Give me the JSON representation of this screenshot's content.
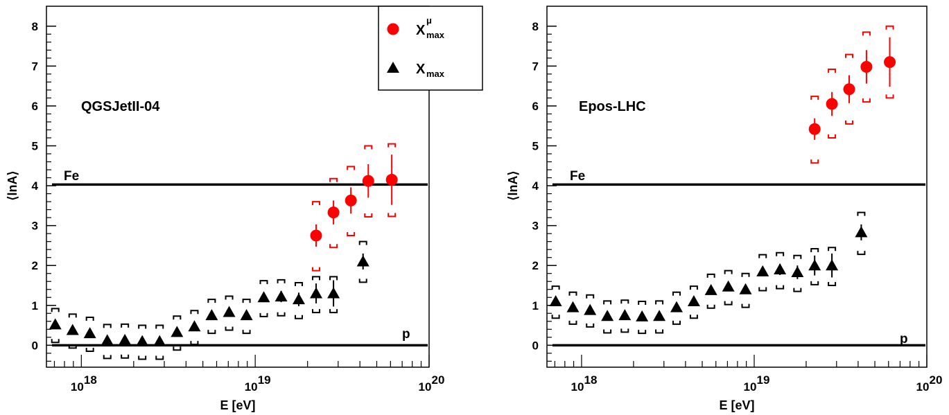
{
  "chart_data": [
    {
      "type": "scatter",
      "model_label": "QGSJetII-04",
      "xlabel": "E [eV]",
      "ylabel": "⟨lnA⟩",
      "xscale": "log",
      "xlim": [
        6.3e+17,
        1e+20
      ],
      "ylim": [
        -0.55,
        8.5
      ],
      "x_tick_labels": [
        {
          "base": "10",
          "exp": "18",
          "value": 1e+18
        },
        {
          "base": "10",
          "exp": "19",
          "value": 1e+19
        },
        {
          "base": "10",
          "exp": "20",
          "value": 1e+20
        }
      ],
      "y_ticks": [
        0,
        1,
        2,
        3,
        4,
        5,
        6,
        7,
        8
      ],
      "y_tick_labels": [
        "0",
        "1",
        "2",
        "3",
        "4",
        "5",
        "6",
        "7",
        "8"
      ],
      "reference_lines": [
        {
          "label": "Fe",
          "y": 4.03
        },
        {
          "label": "p",
          "y": 0.0
        }
      ],
      "legend": {
        "placement": "top-right",
        "entries": [
          {
            "name_base": "X",
            "name_sub": "max",
            "name_sup": "μ",
            "marker": "circle",
            "color": "#ff0000"
          },
          {
            "name_base": "X",
            "name_sub": "max",
            "name_sup": "",
            "marker": "triangle",
            "color": "#000000"
          }
        ]
      },
      "series": [
        {
          "marker": "circle",
          "color": "#ff0000",
          "points": [
            {
              "x": 2.24e+19,
              "y": 2.75,
              "stat": [
                0.28,
                0.28
              ],
              "sys": [
                0.88,
                0.85
              ]
            },
            {
              "x": 2.82e+19,
              "y": 3.33,
              "stat": [
                0.3,
                0.3
              ],
              "sys": [
                0.88,
                0.85
              ]
            },
            {
              "x": 3.55e+19,
              "y": 3.63,
              "stat": [
                0.33,
                0.33
              ],
              "sys": [
                0.88,
                0.85
              ]
            },
            {
              "x": 4.47e+19,
              "y": 4.12,
              "stat": [
                0.42,
                0.42
              ],
              "sys": [
                0.9,
                0.88
              ]
            },
            {
              "x": 6.1e+19,
              "y": 4.15,
              "stat": [
                0.63,
                0.63
              ],
              "sys": [
                0.92,
                0.9
              ]
            }
          ]
        },
        {
          "marker": "triangle",
          "color": "#000000",
          "points": [
            {
              "x": 7.08e+17,
              "y": 0.52,
              "stat": [
                0.07,
                0.07
              ],
              "sys": [
                0.45,
                0.4
              ]
            },
            {
              "x": 8.91e+17,
              "y": 0.38,
              "stat": [
                0.06,
                0.06
              ],
              "sys": [
                0.45,
                0.4
              ]
            },
            {
              "x": 1.12e+18,
              "y": 0.3,
              "stat": [
                0.06,
                0.06
              ],
              "sys": [
                0.45,
                0.4
              ]
            },
            {
              "x": 1.41e+18,
              "y": 0.12,
              "stat": [
                0.05,
                0.05
              ],
              "sys": [
                0.45,
                0.4
              ]
            },
            {
              "x": 1.78e+18,
              "y": 0.13,
              "stat": [
                0.05,
                0.05
              ],
              "sys": [
                0.45,
                0.4
              ]
            },
            {
              "x": 2.24e+18,
              "y": 0.1,
              "stat": [
                0.05,
                0.05
              ],
              "sys": [
                0.45,
                0.4
              ]
            },
            {
              "x": 2.82e+18,
              "y": 0.1,
              "stat": [
                0.05,
                0.05
              ],
              "sys": [
                0.45,
                0.4
              ]
            },
            {
              "x": 3.55e+18,
              "y": 0.33,
              "stat": [
                0.06,
                0.06
              ],
              "sys": [
                0.45,
                0.4
              ]
            },
            {
              "x": 4.47e+18,
              "y": 0.47,
              "stat": [
                0.07,
                0.07
              ],
              "sys": [
                0.45,
                0.4
              ]
            },
            {
              "x": 5.62e+18,
              "y": 0.75,
              "stat": [
                0.08,
                0.08
              ],
              "sys": [
                0.45,
                0.4
              ]
            },
            {
              "x": 7.08e+18,
              "y": 0.83,
              "stat": [
                0.09,
                0.09
              ],
              "sys": [
                0.45,
                0.4
              ]
            },
            {
              "x": 8.91e+18,
              "y": 0.75,
              "stat": [
                0.1,
                0.1
              ],
              "sys": [
                0.45,
                0.4
              ]
            },
            {
              "x": 1.12e+19,
              "y": 1.2,
              "stat": [
                0.12,
                0.12
              ],
              "sys": [
                0.48,
                0.42
              ]
            },
            {
              "x": 1.41e+19,
              "y": 1.22,
              "stat": [
                0.14,
                0.14
              ],
              "sys": [
                0.48,
                0.42
              ]
            },
            {
              "x": 1.78e+19,
              "y": 1.15,
              "stat": [
                0.17,
                0.17
              ],
              "sys": [
                0.48,
                0.42
              ]
            },
            {
              "x": 2.24e+19,
              "y": 1.3,
              "stat": [
                0.25,
                0.25
              ],
              "sys": [
                0.48,
                0.42
              ]
            },
            {
              "x": 2.82e+19,
              "y": 1.3,
              "stat": [
                0.33,
                0.33
              ],
              "sys": [
                0.48,
                0.42
              ]
            },
            {
              "x": 4.17e+19,
              "y": 2.1,
              "stat": [
                0.2,
                0.2
              ],
              "sys": [
                0.52,
                0.5
              ]
            }
          ]
        }
      ]
    },
    {
      "type": "scatter",
      "model_label": "Epos-LHC",
      "xlabel": "E [eV]",
      "ylabel": "⟨lnA⟩",
      "xscale": "log",
      "xlim": [
        6.3e+17,
        1e+20
      ],
      "ylim": [
        -0.55,
        8.5
      ],
      "x_tick_labels": [
        {
          "base": "10",
          "exp": "18",
          "value": 1e+18
        },
        {
          "base": "10",
          "exp": "19",
          "value": 1e+19
        },
        {
          "base": "10",
          "exp": "20",
          "value": 1e+20
        }
      ],
      "y_ticks": [
        0,
        1,
        2,
        3,
        4,
        5,
        6,
        7,
        8
      ],
      "y_tick_labels": [
        "0",
        "1",
        "2",
        "3",
        "4",
        "5",
        "6",
        "7",
        "8"
      ],
      "reference_lines": [
        {
          "label": "Fe",
          "y": 4.03
        },
        {
          "label": "p",
          "y": 0.0
        }
      ],
      "series": [
        {
          "marker": "circle",
          "color": "#ff0000",
          "points": [
            {
              "x": 2.24e+19,
              "y": 5.42,
              "stat": [
                0.27,
                0.27
              ],
              "sys": [
                0.85,
                0.82
              ]
            },
            {
              "x": 2.82e+19,
              "y": 6.05,
              "stat": [
                0.3,
                0.3
              ],
              "sys": [
                0.85,
                0.87
              ]
            },
            {
              "x": 3.55e+19,
              "y": 6.42,
              "stat": [
                0.35,
                0.35
              ],
              "sys": [
                0.87,
                0.87
              ]
            },
            {
              "x": 4.47e+19,
              "y": 6.98,
              "stat": [
                0.42,
                0.42
              ],
              "sys": [
                0.88,
                0.87
              ]
            },
            {
              "x": 6.1e+19,
              "y": 7.1,
              "stat": [
                0.62,
                0.62
              ],
              "sys": [
                0.9,
                0.9
              ]
            }
          ]
        },
        {
          "marker": "triangle",
          "color": "#000000",
          "points": [
            {
              "x": 7.08e+17,
              "y": 1.1,
              "stat": [
                0.08,
                0.08
              ],
              "sys": [
                0.42,
                0.38
              ]
            },
            {
              "x": 8.91e+17,
              "y": 0.95,
              "stat": [
                0.07,
                0.07
              ],
              "sys": [
                0.42,
                0.38
              ]
            },
            {
              "x": 1.12e+18,
              "y": 0.88,
              "stat": [
                0.07,
                0.07
              ],
              "sys": [
                0.42,
                0.38
              ]
            },
            {
              "x": 1.41e+18,
              "y": 0.73,
              "stat": [
                0.06,
                0.06
              ],
              "sys": [
                0.42,
                0.38
              ]
            },
            {
              "x": 1.78e+18,
              "y": 0.75,
              "stat": [
                0.06,
                0.06
              ],
              "sys": [
                0.42,
                0.38
              ]
            },
            {
              "x": 2.24e+18,
              "y": 0.72,
              "stat": [
                0.06,
                0.06
              ],
              "sys": [
                0.42,
                0.38
              ]
            },
            {
              "x": 2.82e+18,
              "y": 0.73,
              "stat": [
                0.06,
                0.06
              ],
              "sys": [
                0.42,
                0.38
              ]
            },
            {
              "x": 3.55e+18,
              "y": 0.95,
              "stat": [
                0.07,
                0.07
              ],
              "sys": [
                0.42,
                0.38
              ]
            },
            {
              "x": 4.47e+18,
              "y": 1.1,
              "stat": [
                0.08,
                0.08
              ],
              "sys": [
                0.42,
                0.38
              ]
            },
            {
              "x": 5.62e+18,
              "y": 1.38,
              "stat": [
                0.09,
                0.09
              ],
              "sys": [
                0.45,
                0.4
              ]
            },
            {
              "x": 7.08e+18,
              "y": 1.47,
              "stat": [
                0.1,
                0.1
              ],
              "sys": [
                0.45,
                0.4
              ]
            },
            {
              "x": 8.91e+18,
              "y": 1.4,
              "stat": [
                0.11,
                0.11
              ],
              "sys": [
                0.45,
                0.4
              ]
            },
            {
              "x": 1.12e+19,
              "y": 1.85,
              "stat": [
                0.12,
                0.12
              ],
              "sys": [
                0.48,
                0.42
              ]
            },
            {
              "x": 1.41e+19,
              "y": 1.9,
              "stat": [
                0.14,
                0.14
              ],
              "sys": [
                0.48,
                0.42
              ]
            },
            {
              "x": 1.78e+19,
              "y": 1.83,
              "stat": [
                0.17,
                0.17
              ],
              "sys": [
                0.48,
                0.42
              ]
            },
            {
              "x": 2.24e+19,
              "y": 2.0,
              "stat": [
                0.25,
                0.25
              ],
              "sys": [
                0.48,
                0.42
              ]
            },
            {
              "x": 2.82e+19,
              "y": 2.0,
              "stat": [
                0.3,
                0.3
              ],
              "sys": [
                0.5,
                0.45
              ]
            },
            {
              "x": 4.17e+19,
              "y": 2.83,
              "stat": [
                0.2,
                0.2
              ],
              "sys": [
                0.55,
                0.5
              ]
            }
          ]
        }
      ]
    }
  ]
}
